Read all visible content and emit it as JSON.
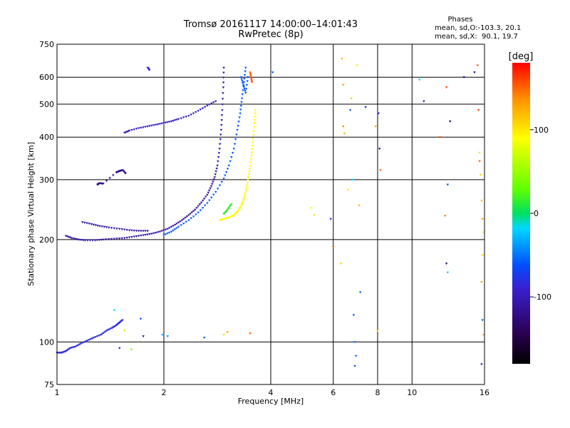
{
  "chart_data": {
    "type": "scatter",
    "title": "Tromsø 20161117 14:00:00–14:01:43",
    "subtitle": "RwPretec (8p)",
    "stats": {
      "heading": "Phases",
      "line_o": "mean, sd,O:-103.3, 20.1",
      "line_x": "mean, sd,X:  90.1, 19.7"
    },
    "xlabel": "Frequency [MHz]",
    "ylabel": "Stationary phase Virtual Height [km]",
    "x_scale": "log",
    "y_scale": "log",
    "xlim": [
      1,
      16
    ],
    "ylim": [
      75,
      750
    ],
    "x_ticks": [
      {
        "value": 1,
        "label": "1"
      },
      {
        "value": 2,
        "label": "2"
      },
      {
        "value": 4,
        "label": "4"
      },
      {
        "value": 6,
        "label": "6"
      },
      {
        "value": 8,
        "label": "8"
      },
      {
        "value": 10,
        "label": "10"
      },
      {
        "value": 16,
        "label": "16"
      }
    ],
    "y_ticks": [
      {
        "value": 75,
        "label": "75"
      },
      {
        "value": 100,
        "label": "100"
      },
      {
        "value": 200,
        "label": "200"
      },
      {
        "value": 300,
        "label": "300"
      },
      {
        "value": 400,
        "label": "400"
      },
      {
        "value": 500,
        "label": "500"
      },
      {
        "value": 600,
        "label": "600"
      },
      {
        "value": 750,
        "label": "750"
      }
    ],
    "grid": true,
    "colorbar": {
      "label": "[deg]",
      "range": [
        -180,
        180
      ],
      "ticks": [
        {
          "value": 100,
          "label": "100"
        },
        {
          "value": 0,
          "label": "0"
        },
        {
          "value": -100,
          "label": "-100"
        }
      ]
    },
    "traces": [
      {
        "phase": -115,
        "points": [
          [
            1.0,
            93
          ],
          [
            1.03,
            93
          ],
          [
            1.06,
            94
          ],
          [
            1.09,
            96
          ],
          [
            1.13,
            97
          ],
          [
            1.17,
            99
          ],
          [
            1.22,
            101
          ],
          [
            1.27,
            103
          ],
          [
            1.33,
            105
          ],
          [
            1.38,
            108
          ],
          [
            1.43,
            110
          ],
          [
            1.47,
            112
          ],
          [
            1.5,
            114
          ],
          [
            1.53,
            116
          ]
        ]
      },
      {
        "phase": -130,
        "points": [
          [
            1.06,
            205
          ],
          [
            1.1,
            202
          ],
          [
            1.15,
            200
          ],
          [
            1.2,
            199
          ],
          [
            1.28,
            199
          ],
          [
            1.35,
            200
          ],
          [
            1.45,
            201
          ],
          [
            1.55,
            202
          ],
          [
            1.65,
            204
          ],
          [
            1.75,
            206
          ],
          [
            1.85,
            208
          ],
          [
            1.95,
            211
          ],
          [
            2.05,
            215
          ],
          [
            2.15,
            221
          ],
          [
            2.25,
            228
          ],
          [
            2.35,
            236
          ],
          [
            2.45,
            245
          ],
          [
            2.55,
            257
          ],
          [
            2.65,
            271
          ],
          [
            2.72,
            287
          ],
          [
            2.78,
            305
          ],
          [
            2.83,
            330
          ],
          [
            2.87,
            370
          ],
          [
            2.9,
            420
          ],
          [
            2.92,
            480
          ],
          [
            2.94,
            560
          ],
          [
            2.95,
            640
          ]
        ]
      },
      {
        "phase": -95,
        "points": [
          [
            2.0,
            206
          ],
          [
            2.1,
            211
          ],
          [
            2.2,
            218
          ],
          [
            2.35,
            228
          ],
          [
            2.5,
            240
          ],
          [
            2.65,
            256
          ],
          [
            2.8,
            276
          ],
          [
            2.95,
            302
          ],
          [
            3.05,
            330
          ],
          [
            3.15,
            370
          ],
          [
            3.22,
            420
          ],
          [
            3.28,
            470
          ],
          [
            3.32,
            520
          ],
          [
            3.36,
            580
          ],
          [
            3.4,
            640
          ]
        ]
      },
      {
        "phase": -130,
        "points": [
          [
            1.18,
            225
          ],
          [
            1.25,
            222
          ],
          [
            1.32,
            219
          ],
          [
            1.4,
            217
          ],
          [
            1.5,
            215
          ],
          [
            1.6,
            213
          ],
          [
            1.7,
            212
          ],
          [
            1.8,
            212
          ]
        ]
      },
      {
        "phase": -125,
        "points": [
          [
            1.55,
            412
          ],
          [
            1.6,
            418
          ],
          [
            1.7,
            425
          ],
          [
            1.8,
            430
          ],
          [
            1.9,
            435
          ],
          [
            2.0,
            440
          ],
          [
            2.1,
            445
          ],
          [
            2.2,
            452
          ],
          [
            2.35,
            462
          ],
          [
            2.5,
            478
          ],
          [
            2.65,
            495
          ],
          [
            2.8,
            510
          ]
        ]
      },
      {
        "phase": 92,
        "points": [
          [
            2.88,
            228
          ],
          [
            2.95,
            230
          ],
          [
            3.05,
            232
          ],
          [
            3.15,
            236
          ],
          [
            3.22,
            241
          ],
          [
            3.28,
            248
          ],
          [
            3.34,
            258
          ],
          [
            3.38,
            270
          ],
          [
            3.42,
            285
          ],
          [
            3.46,
            305
          ],
          [
            3.5,
            330
          ],
          [
            3.54,
            360
          ],
          [
            3.57,
            395
          ],
          [
            3.6,
            440
          ],
          [
            3.62,
            480
          ]
        ]
      },
      {
        "phase": 15,
        "points": [
          [
            2.95,
            238
          ],
          [
            3.0,
            242
          ],
          [
            3.05,
            248
          ],
          [
            3.1,
            254
          ]
        ]
      },
      {
        "phase": -100,
        "points": [
          [
            3.3,
            600
          ],
          [
            3.35,
            570
          ],
          [
            3.4,
            540
          ],
          [
            3.45,
            600
          ]
        ]
      },
      {
        "phase": 150,
        "points": [
          [
            3.5,
            620
          ],
          [
            3.52,
            600
          ],
          [
            3.54,
            580
          ]
        ]
      },
      {
        "phase": -135,
        "points": [
          [
            1.3,
            290
          ],
          [
            1.32,
            293
          ],
          [
            1.35,
            292
          ],
          [
            1.47,
            315
          ],
          [
            1.5,
            318
          ],
          [
            1.53,
            320
          ],
          [
            1.56,
            313
          ]
        ]
      },
      {
        "phase": -120,
        "points": [
          [
            1.8,
            640
          ],
          [
            1.82,
            630
          ]
        ]
      }
    ],
    "scatter": [
      {
        "x": 1.45,
        "y": 124,
        "phase": -20
      },
      {
        "x": 1.55,
        "y": 108,
        "phase": 60
      },
      {
        "x": 1.62,
        "y": 95,
        "phase": 40
      },
      {
        "x": 1.75,
        "y": 104,
        "phase": -130
      },
      {
        "x": 1.98,
        "y": 105,
        "phase": -40
      },
      {
        "x": 2.05,
        "y": 104,
        "phase": -60
      },
      {
        "x": 2.6,
        "y": 103,
        "phase": -90
      },
      {
        "x": 2.95,
        "y": 105,
        "phase": 100
      },
      {
        "x": 3.02,
        "y": 107,
        "phase": 130
      },
      {
        "x": 3.5,
        "y": 106,
        "phase": 150
      },
      {
        "x": 1.72,
        "y": 117,
        "phase": -100
      },
      {
        "x": 1.5,
        "y": 96,
        "phase": -120
      },
      {
        "x": 4.05,
        "y": 620,
        "phase": -100
      },
      {
        "x": 5.2,
        "y": 248,
        "phase": 90
      },
      {
        "x": 5.3,
        "y": 236,
        "phase": 100
      },
      {
        "x": 5.9,
        "y": 230,
        "phase": -120
      },
      {
        "x": 6.0,
        "y": 190,
        "phase": 150
      },
      {
        "x": 6.35,
        "y": 680,
        "phase": 120
      },
      {
        "x": 6.4,
        "y": 570,
        "phase": 130
      },
      {
        "x": 6.4,
        "y": 430,
        "phase": 140
      },
      {
        "x": 6.45,
        "y": 410,
        "phase": 120
      },
      {
        "x": 6.3,
        "y": 170,
        "phase": 110
      },
      {
        "x": 6.6,
        "y": 280,
        "phase": 100
      },
      {
        "x": 6.7,
        "y": 480,
        "phase": -100
      },
      {
        "x": 6.75,
        "y": 520,
        "phase": 110
      },
      {
        "x": 6.8,
        "y": 300,
        "phase": -20
      },
      {
        "x": 6.85,
        "y": 120,
        "phase": -90
      },
      {
        "x": 6.9,
        "y": 100,
        "phase": -80
      },
      {
        "x": 6.95,
        "y": 91,
        "phase": -90
      },
      {
        "x": 7.0,
        "y": 650,
        "phase": 100
      },
      {
        "x": 7.1,
        "y": 252,
        "phase": 120
      },
      {
        "x": 7.15,
        "y": 140,
        "phase": -90
      },
      {
        "x": 7.4,
        "y": 490,
        "phase": -110
      },
      {
        "x": 6.9,
        "y": 85,
        "phase": -110
      },
      {
        "x": 7.9,
        "y": 430,
        "phase": 130
      },
      {
        "x": 8.05,
        "y": 470,
        "phase": -120
      },
      {
        "x": 8.1,
        "y": 370,
        "phase": -140
      },
      {
        "x": 8.15,
        "y": 320,
        "phase": 150
      },
      {
        "x": 8.0,
        "y": 108,
        "phase": 120
      },
      {
        "x": 10.5,
        "y": 590,
        "phase": -20
      },
      {
        "x": 10.8,
        "y": 510,
        "phase": -130
      },
      {
        "x": 12.0,
        "y": 400,
        "phase": 150
      },
      {
        "x": 12.5,
        "y": 560,
        "phase": 160
      },
      {
        "x": 12.8,
        "y": 445,
        "phase": -150
      },
      {
        "x": 12.6,
        "y": 290,
        "phase": -100
      },
      {
        "x": 12.4,
        "y": 235,
        "phase": 140
      },
      {
        "x": 12.5,
        "y": 170,
        "phase": -140
      },
      {
        "x": 12.6,
        "y": 160,
        "phase": -30
      },
      {
        "x": 14.0,
        "y": 600,
        "phase": -130
      },
      {
        "x": 15.0,
        "y": 620,
        "phase": -140
      },
      {
        "x": 15.3,
        "y": 650,
        "phase": 150
      },
      {
        "x": 15.4,
        "y": 480,
        "phase": 160
      },
      {
        "x": 15.5,
        "y": 360,
        "phase": 100
      },
      {
        "x": 15.6,
        "y": 310,
        "phase": 110
      },
      {
        "x": 15.7,
        "y": 260,
        "phase": 120
      },
      {
        "x": 15.8,
        "y": 230,
        "phase": 130
      },
      {
        "x": 15.9,
        "y": 210,
        "phase": 90
      },
      {
        "x": 15.8,
        "y": 180,
        "phase": 110
      },
      {
        "x": 15.7,
        "y": 150,
        "phase": 130
      },
      {
        "x": 15.8,
        "y": 116,
        "phase": -100
      },
      {
        "x": 15.9,
        "y": 105,
        "phase": 120
      },
      {
        "x": 15.7,
        "y": 86,
        "phase": -130
      },
      {
        "x": 15.5,
        "y": 340,
        "phase": 150
      }
    ]
  }
}
